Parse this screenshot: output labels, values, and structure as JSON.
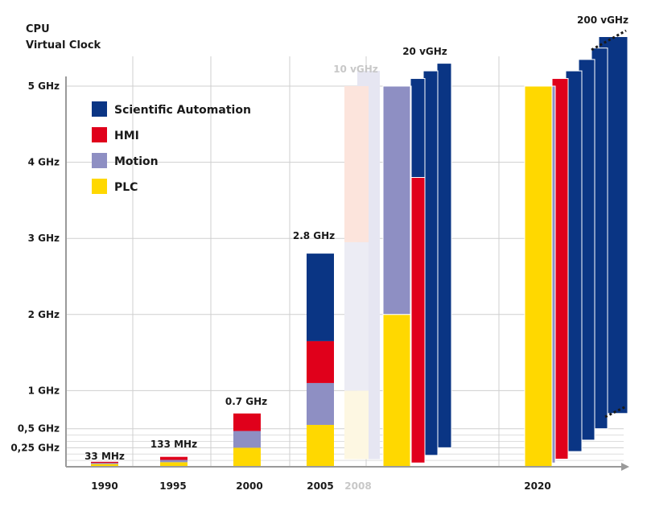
{
  "chart_data": {
    "type": "bar",
    "title": "CPU\nVirtual Clock",
    "title_lines": [
      "CPU",
      "Virtual Clock"
    ],
    "yticks": [
      "0,25 GHz",
      "0,5 GHz",
      "1 GHz",
      "2 GHz",
      "3 GHz",
      "4 GHz",
      "5 GHz"
    ],
    "ytick_values": [
      0.25,
      0.5,
      1,
      2,
      3,
      4,
      5
    ],
    "ylim": [
      0,
      5.35
    ],
    "categories": [
      "1990",
      "1995",
      "2000",
      "2005",
      "2008",
      "2020"
    ],
    "legend_position": "top-left",
    "grid": true,
    "series": [
      {
        "name": "Scientific Automation",
        "color": "#0a3584"
      },
      {
        "name": "HMI",
        "color": "#e0001b"
      },
      {
        "name": "Motion",
        "color": "#8e8fc3"
      },
      {
        "name": "PLC",
        "color": "#ffd800"
      }
    ],
    "stacked_bars": [
      {
        "category": "1990",
        "label": "33 MHz",
        "total": 0.033
      },
      {
        "category": "1995",
        "label": "133 MHz",
        "total": 0.133,
        "segments": {
          "PLC": 0.06,
          "Motion": 0.03,
          "HMI": 0.04
        }
      },
      {
        "category": "2000",
        "label": "0.7 GHz",
        "total": 0.7,
        "segments": {
          "PLC": 0.25,
          "Motion": 0.22,
          "HMI": 0.23
        }
      },
      {
        "category": "2005",
        "label": "2.8 GHz",
        "total": 2.8,
        "segments": {
          "PLC": 0.55,
          "Motion": 0.55,
          "HMI": 0.55,
          "Scientific Automation": 1.15
        }
      },
      {
        "category": "2008",
        "label": "10 vGHz",
        "faded": true,
        "segments_top": 5.0
      },
      {
        "category": "2008",
        "label": "20 vGHz",
        "faded": false,
        "segments_top": 5.0
      },
      {
        "category": "2020",
        "label": "200 vGHz",
        "segments_top": 5.0
      }
    ],
    "annotations": [
      "33 MHz",
      "133 MHz",
      "0.7 GHz",
      "2.8 GHz",
      "10 vGHz",
      "20 vGHz",
      "200 vGHz"
    ]
  }
}
